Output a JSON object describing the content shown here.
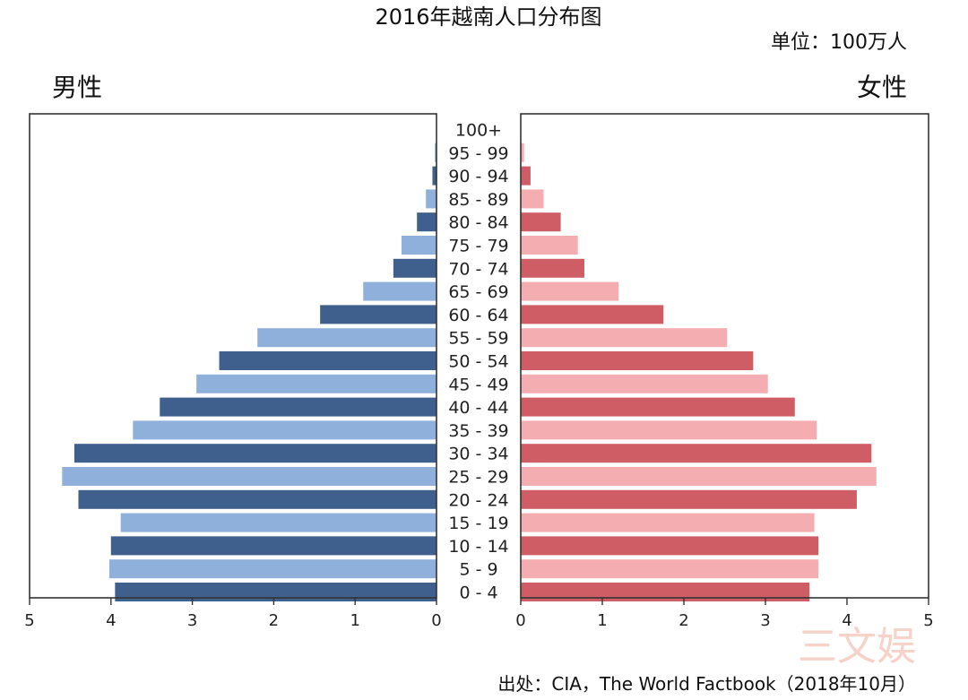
{
  "chart_data": {
    "type": "bar",
    "subtype": "population-pyramid",
    "title": "2016年越南人口分布图",
    "unit": "单位：100万人",
    "source": "出处：CIA，The World Factbook（2018年10月）",
    "male_label": "男性",
    "female_label": "女性",
    "xlim": [
      0,
      5
    ],
    "x_ticks": [
      "5",
      "4",
      "3",
      "2",
      "1",
      "0"
    ],
    "x_ticks_right": [
      "0",
      "1",
      "2",
      "3",
      "4",
      "5"
    ],
    "categories": [
      "100+",
      "95 - 99",
      "90 - 94",
      "85 - 89",
      "80 - 84",
      "75 - 79",
      "70 - 74",
      "65 - 69",
      "60 - 64",
      "55 - 59",
      "50 - 54",
      "45 - 49",
      "40 - 44",
      "35 - 39",
      "30 - 34",
      "25 - 29",
      "20 - 24",
      "15 - 19",
      "10 - 14",
      "5 - 9",
      "0 - 4"
    ],
    "series": [
      {
        "name": "男性",
        "values": [
          0.0,
          0.02,
          0.05,
          0.13,
          0.24,
          0.43,
          0.53,
          0.9,
          1.43,
          2.2,
          2.67,
          2.95,
          3.4,
          3.73,
          4.45,
          4.6,
          4.4,
          3.88,
          4.0,
          4.02,
          3.95
        ]
      },
      {
        "name": "女性",
        "values": [
          0.0,
          0.04,
          0.12,
          0.28,
          0.49,
          0.7,
          0.78,
          1.2,
          1.75,
          2.53,
          2.85,
          3.03,
          3.36,
          3.63,
          4.3,
          4.36,
          4.12,
          3.6,
          3.65,
          3.65,
          3.54
        ]
      }
    ],
    "colors": {
      "male_dark": "#3f5f8c",
      "male_light": "#8fb0db",
      "female_dark": "#cf5d66",
      "female_light": "#f4adb1"
    },
    "grid": false
  },
  "watermark": "三文娱"
}
